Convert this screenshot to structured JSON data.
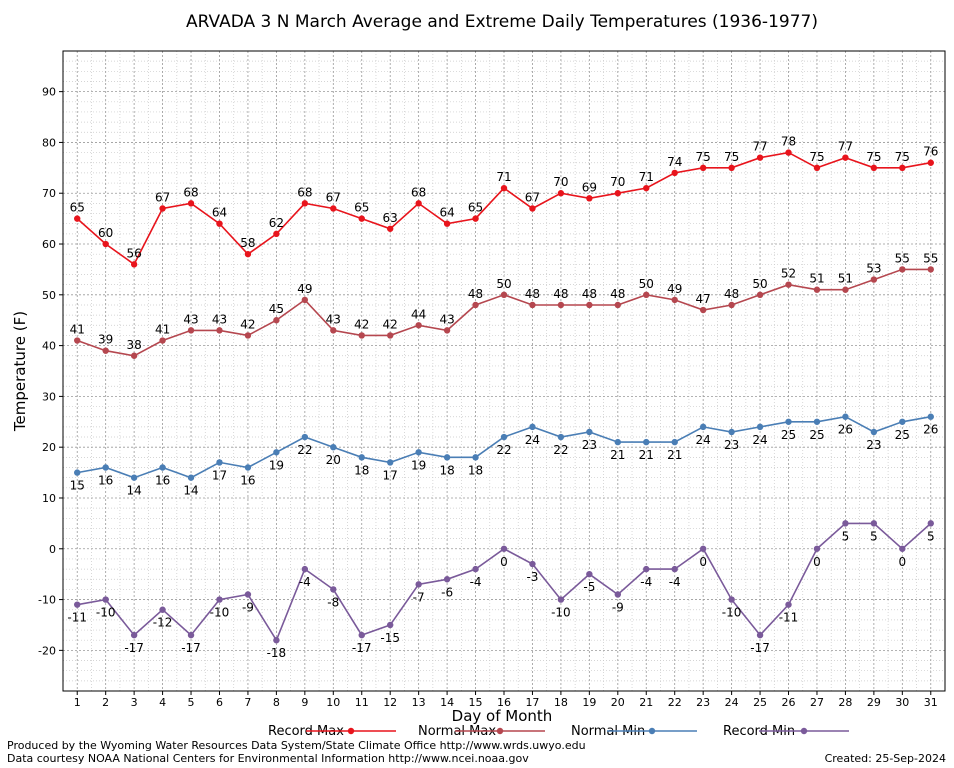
{
  "chart_data": {
    "type": "line",
    "title": "ARVADA 3 N March Average and Extreme Daily Temperatures (1936-1977)",
    "xlabel": "Day of Month",
    "ylabel": "Temperature (F)",
    "x": [
      1,
      2,
      3,
      4,
      5,
      6,
      7,
      8,
      9,
      10,
      11,
      12,
      13,
      14,
      15,
      16,
      17,
      18,
      19,
      20,
      21,
      22,
      23,
      24,
      25,
      26,
      27,
      28,
      29,
      30,
      31
    ],
    "xlim": [
      0.5,
      31.5
    ],
    "ylim": [
      -28,
      98
    ],
    "yticks": [
      -20,
      -10,
      0,
      10,
      20,
      30,
      40,
      50,
      60,
      70,
      80,
      90
    ],
    "grid": true,
    "series": [
      {
        "name": "Record Max",
        "color": "#e8141c",
        "label_pos": "above",
        "values": [
          65,
          60,
          56,
          67,
          68,
          64,
          58,
          62,
          68,
          67,
          65,
          63,
          68,
          64,
          65,
          71,
          67,
          70,
          69,
          70,
          71,
          74,
          75,
          75,
          77,
          78,
          75,
          77,
          75,
          75,
          76
        ]
      },
      {
        "name": "Normal Max",
        "color": "#b5474f",
        "label_pos": "above",
        "values": [
          41,
          39,
          38,
          41,
          43,
          43,
          42,
          45,
          49,
          43,
          42,
          42,
          44,
          43,
          48,
          50,
          48,
          48,
          48,
          48,
          50,
          49,
          47,
          48,
          50,
          52,
          51,
          51,
          53,
          55,
          55
        ]
      },
      {
        "name": "Normal Min",
        "color": "#4a7eb5",
        "label_pos": "below",
        "values": [
          15,
          16,
          14,
          16,
          14,
          17,
          16,
          19,
          22,
          20,
          18,
          17,
          19,
          18,
          18,
          22,
          24,
          22,
          23,
          21,
          21,
          21,
          24,
          23,
          24,
          25,
          25,
          26,
          23,
          25,
          26
        ]
      },
      {
        "name": "Record Min",
        "color": "#7a5a9a",
        "label_pos": "below",
        "values": [
          -11,
          -10,
          -17,
          -12,
          -17,
          -10,
          -9,
          -18,
          -4,
          -8,
          -17,
          -15,
          -7,
          -6,
          -4,
          0,
          -3,
          -10,
          -5,
          -9,
          -4,
          -4,
          0,
          -10,
          -17,
          -11,
          0,
          5,
          5,
          0,
          5
        ]
      }
    ]
  },
  "footer": {
    "line1": "Produced by the Wyoming Water Resources Data System/State Climate Office http://www.wrds.uwyo.edu",
    "line2": "Data courtesy NOAA National Centers for Environmental Information http://www.ncei.noaa.gov",
    "created": "Created:  25-Sep-2024"
  }
}
